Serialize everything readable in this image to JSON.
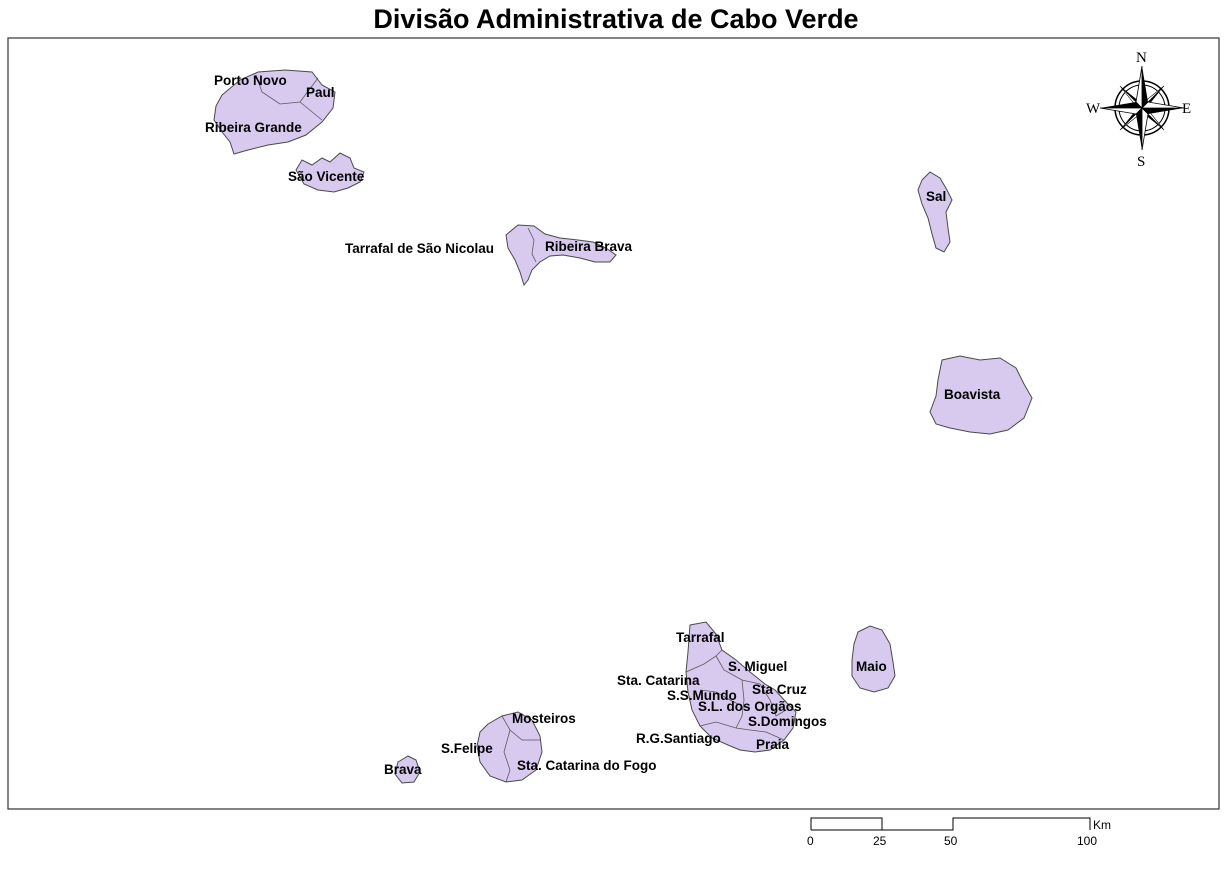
{
  "title": "Divisão Administrativa de Cabo Verde",
  "colors": {
    "land": "#d8c9ef",
    "outline": "#4a4a4a",
    "frame": "#333333"
  },
  "compass": {
    "n": "N",
    "s": "S",
    "e": "E",
    "w": "W"
  },
  "labels": {
    "porto_novo": "Porto Novo",
    "paul": "Paul",
    "ribeira_grande": "Ribeira Grande",
    "sao_vicente": "São Vicente",
    "tarrafal_sn": "Tarrafal de São Nicolau",
    "ribeira_brava": "Ribeira Brava",
    "sal": "Sal",
    "boavista": "Boavista",
    "maio": "Maio",
    "tarrafal": "Tarrafal",
    "s_miguel": "S. Miguel",
    "sta_catarina": "Sta. Catarina",
    "ssmundo": "S.S.Mundo",
    "sta_cruz": "Sta Cruz",
    "sl_orgaos": "S.L. dos Orgãos",
    "s_domingos": "S.Domingos",
    "rg_santiago": "R.G.Santiago",
    "praia": "Praia",
    "mosteiros": "Mosteiros",
    "s_felipe": "S.Felipe",
    "sta_catarina_fogo": "Sta. Catarina do Fogo",
    "brava": "Brava"
  },
  "scale_bar": {
    "unit": "Km",
    "ticks": [
      "0",
      "25",
      "50",
      "100"
    ]
  }
}
